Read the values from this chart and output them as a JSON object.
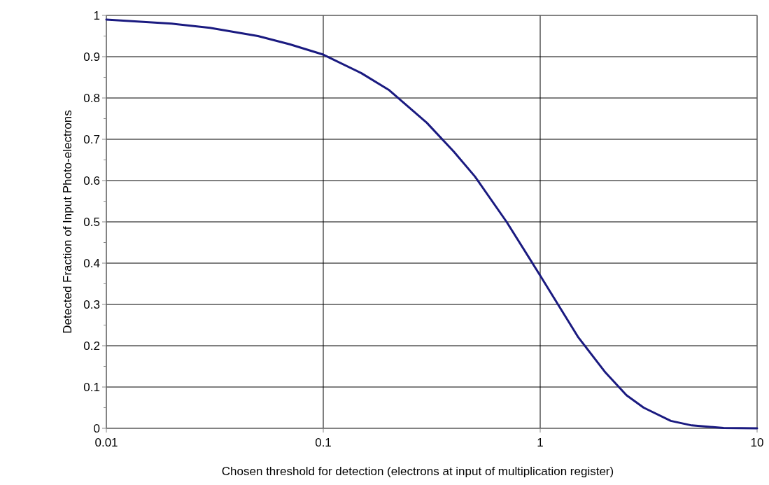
{
  "chart_data": {
    "type": "line",
    "xlabel": "Chosen threshold for detection (electrons at input of multiplication register)",
    "ylabel": "Detected Fraction of Input Photo-electrons",
    "log": "x",
    "grid": true,
    "marker": "none",
    "line_style": "solid",
    "x": [
      0.01,
      0.02,
      0.03,
      0.05,
      0.07,
      0.1,
      0.15,
      0.2,
      0.3,
      0.4,
      0.5,
      0.7,
      1,
      1.5,
      2,
      2.5,
      3,
      4,
      5,
      7,
      10
    ],
    "series": [
      {
        "color": "#1a1a80",
        "values": [
          0.99,
          0.98,
          0.97,
          0.95,
          0.93,
          0.905,
          0.86,
          0.82,
          0.74,
          0.67,
          0.61,
          0.5,
          0.37,
          0.22,
          0.135,
          0.08,
          0.05,
          0.018,
          0.007,
          0.001,
          0
        ]
      }
    ],
    "xlim": [
      0.01,
      10
    ],
    "xticks": [
      0.01,
      0.1,
      1,
      10
    ],
    "ylim": [
      0,
      1
    ],
    "yticks": [
      0,
      {
        "value": 0.05,
        "label": null
      },
      0.1,
      {
        "value": 0.15,
        "label": null
      },
      0.2,
      {
        "value": 0.25,
        "label": null
      },
      0.3,
      {
        "value": 0.35,
        "label": null
      },
      0.4,
      {
        "value": 0.45,
        "label": null
      },
      0.5,
      {
        "value": 0.55,
        "label": null
      },
      0.6,
      {
        "value": 0.65,
        "label": null
      },
      0.7,
      {
        "value": 0.75,
        "label": null
      },
      0.8,
      {
        "value": 0.85,
        "label": null
      },
      0.9,
      {
        "value": 0.95,
        "label": null
      },
      1
    ]
  }
}
